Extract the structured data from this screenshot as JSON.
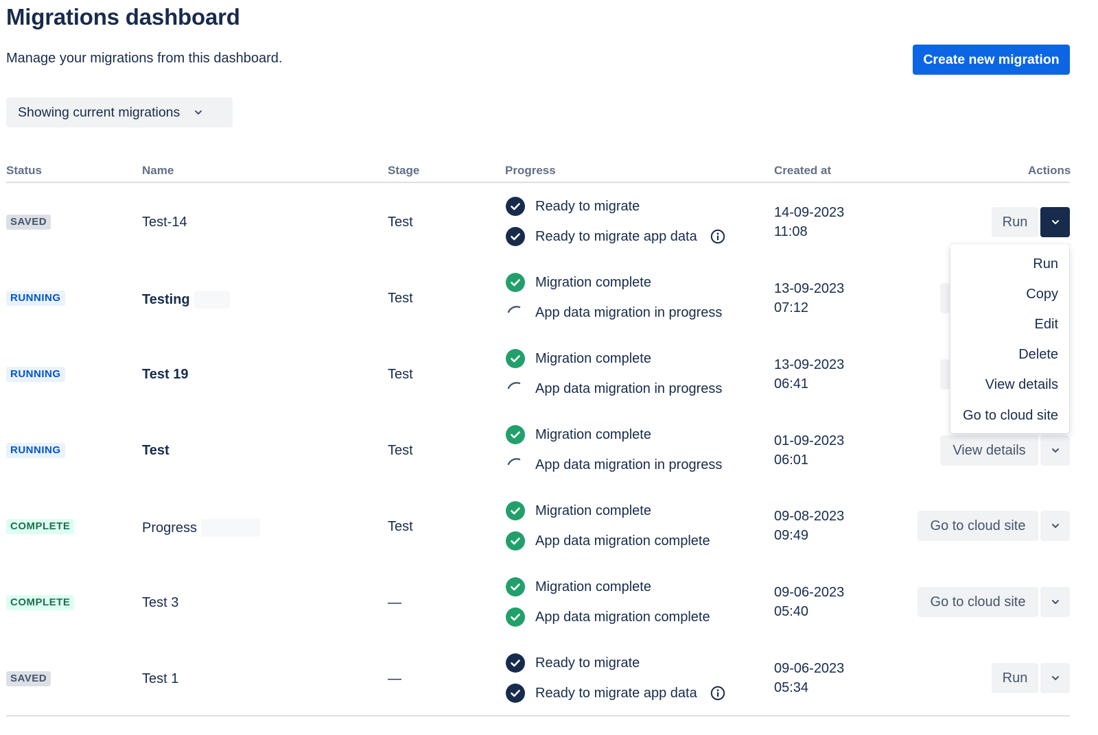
{
  "page": {
    "title": "Migrations dashboard",
    "subtitle": "Manage your migrations from this dashboard.",
    "create_button": "Create new migration",
    "filter_label": "Showing current migrations"
  },
  "table": {
    "headers": {
      "status": "Status",
      "name": "Name",
      "stage": "Stage",
      "progress": "Progress",
      "created": "Created at",
      "actions": "Actions"
    },
    "rows": [
      {
        "status": "SAVED",
        "name": "Test-14",
        "stage": "Test",
        "p1": "Ready to migrate",
        "p2": "Ready to migrate app data",
        "date": "14-09-2023",
        "time": "11:08",
        "action": "Run"
      },
      {
        "status": "RUNNING",
        "name": "Testing",
        "stage": "Test",
        "p1": "Migration complete",
        "p2": "App data migration in progress",
        "date": "13-09-2023",
        "time": "07:12",
        "action": ""
      },
      {
        "status": "RUNNING",
        "name": "Test 19",
        "stage": "Test",
        "p1": "Migration complete",
        "p2": "App data migration in progress",
        "date": "13-09-2023",
        "time": "06:41",
        "action": ""
      },
      {
        "status": "RUNNING",
        "name": "Test",
        "stage": "Test",
        "p1": "Migration complete",
        "p2": "App data migration in progress",
        "date": "01-09-2023",
        "time": "06:01",
        "action": "View details"
      },
      {
        "status": "COMPLETE",
        "name": "Progress",
        "stage": "Test",
        "p1": "Migration complete",
        "p2": "App data migration complete",
        "date": "09-08-2023",
        "time": "09:49",
        "action": "Go to cloud site"
      },
      {
        "status": "COMPLETE",
        "name": "Test 3",
        "stage": "—",
        "p1": "Migration complete",
        "p2": "App data migration complete",
        "date": "09-06-2023",
        "time": "05:40",
        "action": "Go to cloud site"
      },
      {
        "status": "SAVED",
        "name": "Test 1",
        "stage": "—",
        "p1": "Ready to migrate",
        "p2": "Ready to migrate app data",
        "date": "09-06-2023",
        "time": "05:34",
        "action": "Run"
      }
    ]
  },
  "dropdown_menu": {
    "items": [
      "Run",
      "Copy",
      "Edit",
      "Delete",
      "View details",
      "Go to cloud site"
    ]
  },
  "colors": {
    "primary": "#0C66E4",
    "dark_check": "#172B4D",
    "green_check": "#22A06B",
    "saved_lozenge": "#DCDFE4",
    "running_lozenge": "#E9F2FF",
    "complete_lozenge": "#DCFFF1"
  },
  "icons": {
    "ready": "check-circle-dark-icon",
    "complete": "check-circle-green-icon",
    "in_progress": "spinner-icon",
    "info": "info-icon",
    "dropdown": "chevron-down-icon"
  }
}
